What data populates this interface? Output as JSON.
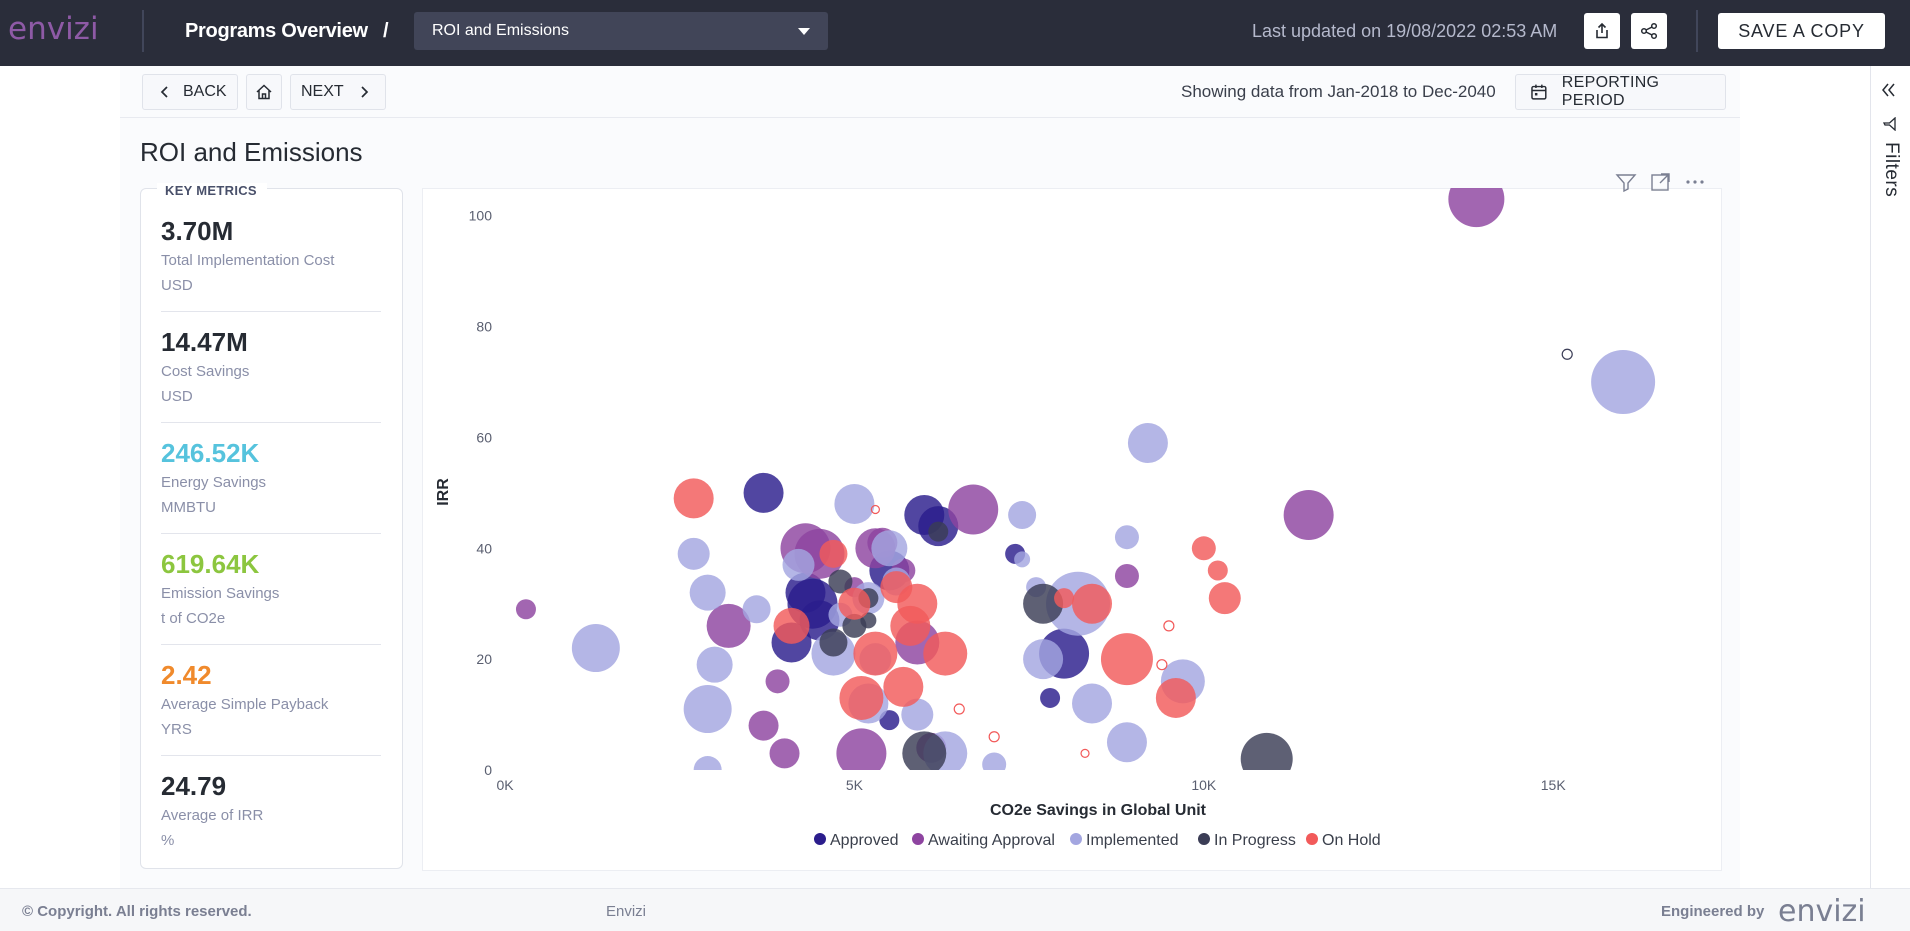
{
  "header": {
    "logo_text": "envizi",
    "page_title": "Programs Overview",
    "title_separator": "/",
    "report_select": "ROI and Emissions",
    "last_updated": "Last updated on 19/08/2022 02:53 AM",
    "share_icon": "share-icon",
    "link_icon": "share-link-icon",
    "save_copy_label": "SAVE A COPY"
  },
  "nav": {
    "back_label": "BACK",
    "home_icon": "home-icon",
    "next_label": "NEXT",
    "showing_text": "Showing data from Jan-2018 to Dec-2040",
    "reporting_period_label": "REPORTING PERIOD"
  },
  "section_title": "ROI and Emissions",
  "key_metrics": {
    "title": "KEY METRICS",
    "items": [
      {
        "value": "3.70M",
        "label": "Total Implementation Cost",
        "unit": "USD",
        "color": "#262b33"
      },
      {
        "value": "14.47M",
        "label": "Cost Savings",
        "unit": "USD",
        "color": "#262b33"
      },
      {
        "value": "246.52K",
        "label": "Energy Savings",
        "unit": "MMBTU",
        "color": "#56c3dd"
      },
      {
        "value": "619.64K",
        "label": "Emission Savings",
        "unit": "t of CO2e",
        "color": "#8cc63f"
      },
      {
        "value": "2.42",
        "label": "Average Simple Payback",
        "unit": "YRS",
        "color": "#f08a2c"
      },
      {
        "value": "24.79",
        "label": "Average of IRR",
        "unit": "%",
        "color": "#262b33"
      }
    ]
  },
  "filters_label": "Filters",
  "footer": {
    "copyright": "© Copyright. All rights reserved.",
    "brand": "Envizi",
    "engineered_by": "Engineered by",
    "logo_text": "envizi"
  },
  "chart_data": {
    "type": "scatter",
    "subtype": "bubble",
    "xlabel": "CO2e Savings in Global Unit",
    "ylabel": "IRR",
    "xlim": [
      0,
      17000
    ],
    "ylim": [
      0,
      105
    ],
    "x_ticks": [
      0,
      5000,
      10000,
      15000
    ],
    "x_tick_labels": [
      "0K",
      "5K",
      "10K",
      "15K"
    ],
    "y_ticks": [
      0,
      20,
      40,
      60,
      80,
      100
    ],
    "grid": false,
    "legend_position": "bottom",
    "colors": {
      "Approved": "#2b1d8c",
      "Awaiting Approval": "#8e44a0",
      "Implemented": "#a3a6e0",
      "In Progress": "#3b3d56",
      "On Hold": "#f25a5a"
    },
    "series": [
      {
        "name": "Approved",
        "points": [
          [
            3700,
            50,
            20
          ],
          [
            4100,
            23,
            20
          ],
          [
            4400,
            30,
            25
          ],
          [
            4500,
            27,
            20
          ],
          [
            5500,
            36,
            20
          ],
          [
            6000,
            46,
            20
          ],
          [
            6200,
            44,
            20
          ],
          [
            7300,
            39,
            10
          ],
          [
            8000,
            21,
            25
          ],
          [
            7800,
            13,
            10
          ],
          [
            5500,
            9,
            10
          ],
          [
            4300,
            32,
            20
          ]
        ]
      },
      {
        "name": "Awaiting Approval",
        "points": [
          [
            300,
            29,
            10
          ],
          [
            3200,
            26,
            22
          ],
          [
            4300,
            40,
            25
          ],
          [
            4500,
            39,
            25
          ],
          [
            5300,
            40,
            20
          ],
          [
            3900,
            16,
            12
          ],
          [
            3700,
            8,
            15
          ],
          [
            4000,
            3,
            15
          ],
          [
            5100,
            3,
            25
          ],
          [
            5900,
            23,
            22
          ],
          [
            6700,
            47,
            25
          ],
          [
            8900,
            35,
            12
          ],
          [
            11500,
            46,
            25
          ],
          [
            13900,
            103,
            28
          ],
          [
            6100,
            4,
            15
          ],
          [
            5000,
            33,
            10
          ],
          [
            5700,
            36,
            12
          ],
          [
            5400,
            41,
            15
          ]
        ]
      },
      {
        "name": "Implemented",
        "points": [
          [
            1300,
            22,
            24
          ],
          [
            2700,
            39,
            16
          ],
          [
            2900,
            32,
            18
          ],
          [
            3000,
            19,
            18
          ],
          [
            2900,
            11,
            24
          ],
          [
            3600,
            29,
            14
          ],
          [
            4200,
            37,
            16
          ],
          [
            4700,
            21,
            22
          ],
          [
            5000,
            48,
            20
          ],
          [
            5500,
            40,
            18
          ],
          [
            5300,
            20,
            16
          ],
          [
            5200,
            12,
            20
          ],
          [
            5900,
            10,
            16
          ],
          [
            6300,
            3,
            22
          ],
          [
            7400,
            46,
            14
          ],
          [
            7600,
            33,
            10
          ],
          [
            7700,
            20,
            20
          ],
          [
            8200,
            30,
            32
          ],
          [
            8400,
            12,
            20
          ],
          [
            8900,
            5,
            20
          ],
          [
            9200,
            59,
            20
          ],
          [
            9700,
            16,
            22
          ],
          [
            16000,
            70,
            32
          ],
          [
            8900,
            42,
            12
          ],
          [
            2900,
            0,
            14
          ],
          [
            7000,
            1,
            12
          ],
          [
            5600,
            34,
            14
          ],
          [
            7400,
            38,
            8
          ],
          [
            4800,
            28,
            12
          ],
          [
            5200,
            31,
            16
          ]
        ]
      },
      {
        "name": "In Progress",
        "points": [
          [
            4800,
            34,
            12
          ],
          [
            5000,
            26,
            12
          ],
          [
            5200,
            27,
            8
          ],
          [
            4700,
            23,
            14
          ],
          [
            7700,
            30,
            20
          ],
          [
            10900,
            2,
            26
          ],
          [
            6000,
            3,
            22
          ],
          [
            6200,
            43,
            10
          ],
          [
            5200,
            31,
            10
          ],
          [
            15200,
            75,
            5
          ]
        ]
      },
      {
        "name": "On Hold",
        "points": [
          [
            2700,
            49,
            20
          ],
          [
            4100,
            26,
            18
          ],
          [
            4700,
            39,
            14
          ],
          [
            5100,
            13,
            22
          ],
          [
            5300,
            21,
            22
          ],
          [
            5900,
            30,
            20
          ],
          [
            6300,
            21,
            22
          ],
          [
            8400,
            30,
            20
          ],
          [
            8000,
            31,
            10
          ],
          [
            8900,
            20,
            26
          ],
          [
            9600,
            13,
            20
          ],
          [
            10000,
            40,
            12
          ],
          [
            10200,
            36,
            10
          ],
          [
            10300,
            31,
            16
          ],
          [
            5700,
            15,
            20
          ],
          [
            5600,
            33,
            16
          ],
          [
            9500,
            26,
            5
          ],
          [
            9400,
            19,
            5
          ],
          [
            6500,
            11,
            5
          ],
          [
            7000,
            6,
            5
          ],
          [
            5300,
            47,
            4
          ],
          [
            8300,
            3,
            4
          ],
          [
            5800,
            26,
            20
          ],
          [
            5000,
            30,
            16
          ]
        ]
      }
    ]
  }
}
